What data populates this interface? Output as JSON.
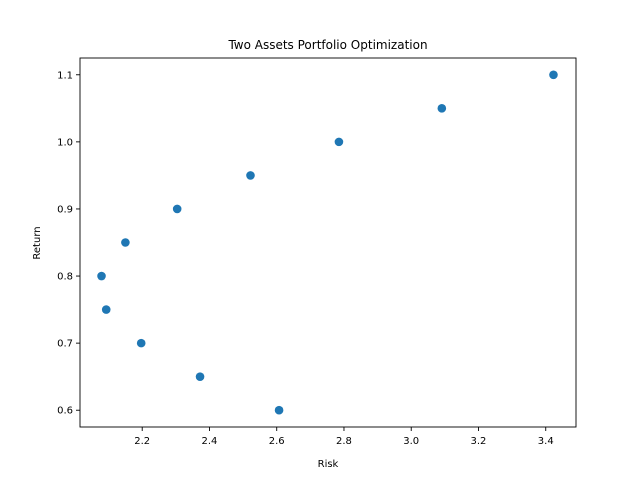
{
  "chart_data": {
    "type": "scatter",
    "title": "Two Assets Portfolio Optimization",
    "xlabel": "Risk",
    "ylabel": "Return",
    "xlim": [
      2.015,
      3.49
    ],
    "ylim": [
      0.575,
      1.125
    ],
    "xticks": [
      2.2,
      2.4,
      2.6,
      2.8,
      3.0,
      3.2,
      3.4
    ],
    "xtick_labels": [
      "2.2",
      "2.4",
      "2.6",
      "2.8",
      "3.0",
      "3.2",
      "3.4"
    ],
    "yticks": [
      0.6,
      0.7,
      0.8,
      0.9,
      1.0,
      1.1
    ],
    "ytick_labels": [
      "0.6",
      "0.7",
      "0.8",
      "0.9",
      "1.0",
      "1.1"
    ],
    "grid": false,
    "color": "#1f77b4",
    "series": [
      {
        "x": [
          2.607,
          2.372,
          2.197,
          2.093,
          2.079,
          2.15,
          2.304,
          2.522,
          2.785,
          3.091,
          3.423
        ],
        "y": [
          0.6,
          0.65,
          0.7,
          0.75,
          0.8,
          0.85,
          0.9,
          0.95,
          1.0,
          1.05,
          1.1
        ]
      }
    ]
  }
}
